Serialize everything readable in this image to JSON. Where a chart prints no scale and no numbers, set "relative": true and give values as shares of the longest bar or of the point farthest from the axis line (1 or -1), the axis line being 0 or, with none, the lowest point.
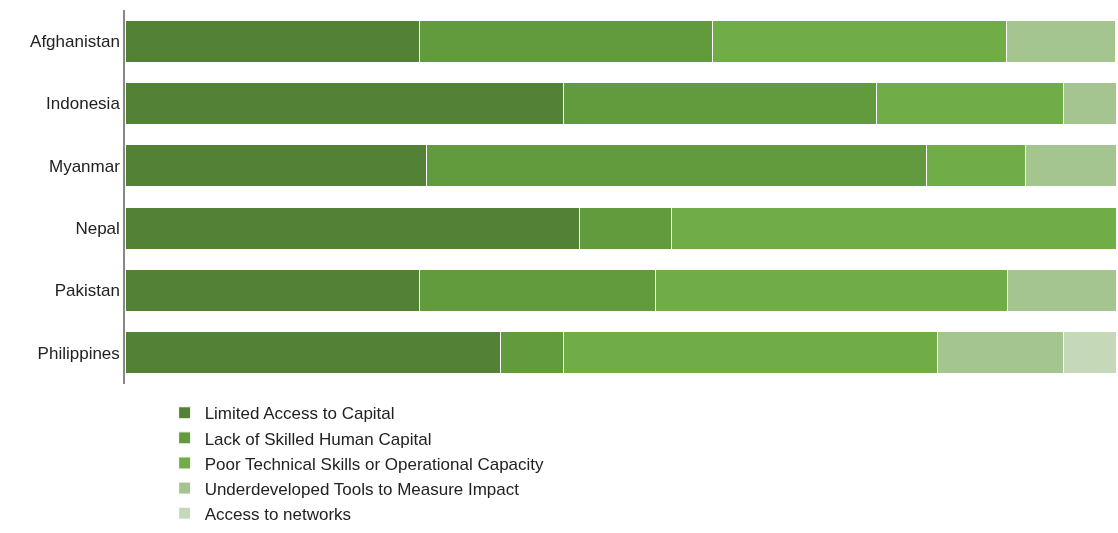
{
  "chart_data": {
    "type": "bar",
    "orientation": "horizontal",
    "stacked": true,
    "relative": true,
    "categories": [
      "Afghanistan",
      "Indonesia",
      "Myanmar",
      "Nepal",
      "Pakistan",
      "Philippines"
    ],
    "series": [
      {
        "name": "Limited Access to Capital",
        "color": "#538135",
        "values": [
          0.297,
          0.442,
          0.304,
          0.459,
          0.297,
          0.379
        ]
      },
      {
        "name": "Lack of Skilled Human Capital",
        "color": "#629a3e",
        "values": [
          0.296,
          0.316,
          0.505,
          0.092,
          0.238,
          0.063
        ]
      },
      {
        "name": "Poor Technical Skills or Operational Capacity",
        "color": "#70ad47",
        "values": [
          0.297,
          0.189,
          0.1,
          0.449,
          0.356,
          0.378
        ]
      },
      {
        "name": "Underdeveloped Tools to Measure Impact",
        "color": "#a5c590",
        "values": [
          0.109,
          0.053,
          0.091,
          null,
          0.109,
          0.127
        ]
      },
      {
        "name": "Access to networks",
        "color": "#c5d9b8",
        "values": [
          null,
          null,
          null,
          null,
          null,
          0.053
        ]
      }
    ],
    "legend": "bottom"
  }
}
